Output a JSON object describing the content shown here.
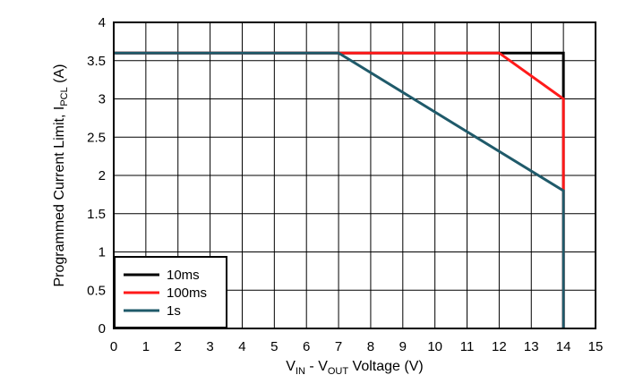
{
  "chart_data": {
    "type": "line",
    "xlabel_parts": {
      "v1": "V",
      "sub1": "IN",
      "mid": " - V",
      "sub2": "OUT",
      "end": " Voltage (V)"
    },
    "ylabel_parts": {
      "main": "Programmed Current Limit, I",
      "sub": "PCL",
      "end": " (A)"
    },
    "xlim": [
      0,
      15
    ],
    "ylim": [
      0,
      4
    ],
    "x_ticks": [
      0,
      1,
      2,
      3,
      4,
      5,
      6,
      7,
      8,
      9,
      10,
      11,
      12,
      13,
      14,
      15
    ],
    "y_ticks": [
      0,
      0.5,
      1,
      1.5,
      2,
      2.5,
      3,
      3.5,
      4
    ],
    "x_tick_labels": [
      "0",
      "1",
      "2",
      "3",
      "4",
      "5",
      "6",
      "7",
      "8",
      "9",
      "10",
      "11",
      "12",
      "13",
      "14",
      "15"
    ],
    "y_tick_labels": [
      "0",
      "0.5",
      "1",
      "1.5",
      "2",
      "2.5",
      "3",
      "3.5",
      "4"
    ],
    "grid": true,
    "legend_position": "bottom-left",
    "series": [
      {
        "name": "10ms",
        "color": "#000000",
        "x": [
          0,
          14,
          14
        ],
        "y": [
          3.6,
          3.6,
          0
        ]
      },
      {
        "name": "100ms",
        "color": "#ff1a1a",
        "x": [
          0,
          12,
          14,
          14
        ],
        "y": [
          3.6,
          3.6,
          3.0,
          0
        ]
      },
      {
        "name": "1s",
        "color": "#1f5a6a",
        "x": [
          0,
          7,
          14,
          14
        ],
        "y": [
          3.6,
          3.6,
          1.8,
          0
        ]
      }
    ]
  }
}
